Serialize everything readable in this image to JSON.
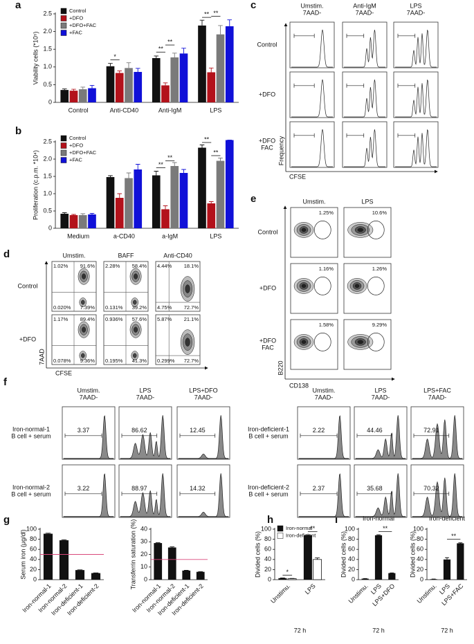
{
  "chart_data": [
    {
      "type": "bar",
      "panel": "a",
      "y_label": "Viability cells (*10⁵)",
      "categories": [
        "Control",
        "Anti-CD40",
        "Anti-IgM",
        "LPS"
      ],
      "series": [
        {
          "name": "Control",
          "color": "#111111",
          "values": [
            0.35,
            1.02,
            1.25,
            2.17
          ],
          "errors": [
            0.03,
            0.08,
            0.06,
            0.15
          ]
        },
        {
          "name": "+DFO",
          "color": "#b3121b",
          "values": [
            0.33,
            0.83,
            0.48,
            0.85
          ],
          "errors": [
            0.04,
            0.06,
            0.07,
            0.12
          ]
        },
        {
          "name": "+DFO+FAC",
          "color": "#7a7a7a",
          "values": [
            0.37,
            0.97,
            1.27,
            1.92
          ],
          "errors": [
            0.06,
            0.15,
            0.12,
            0.25
          ]
        },
        {
          "name": "+FAC",
          "color": "#1010d8",
          "values": [
            0.4,
            0.86,
            1.38,
            2.15
          ],
          "errors": [
            0.08,
            0.1,
            0.15,
            0.18
          ]
        }
      ],
      "ylim": [
        0,
        2.5
      ],
      "yticks": [
        0,
        0.5,
        {
          "value": 1,
          "label": "1.0"
        },
        1.5,
        {
          "value": 2,
          "label": "2.0"
        },
        2.5
      ],
      "annotations": [
        "*",
        "**",
        "**",
        "**",
        "**"
      ]
    },
    {
      "type": "bar",
      "panel": "b",
      "y_label": "Proliferation (c.p.m. *10⁴)",
      "categories": [
        "Medium",
        "a-CD40",
        "a-IgM",
        "LPS"
      ],
      "series": [
        {
          "name": "Control",
          "color": "#111111",
          "values": [
            0.42,
            1.48,
            1.53,
            2.33
          ],
          "errors": [
            0.03,
            0.04,
            0.12,
            0.08
          ]
        },
        {
          "name": "+DFO",
          "color": "#b3121b",
          "values": [
            0.38,
            0.88,
            0.55,
            0.72
          ],
          "errors": [
            0.02,
            0.12,
            0.1,
            0.05
          ]
        },
        {
          "name": "+DFO+FAC",
          "color": "#7a7a7a",
          "values": [
            0.38,
            1.45,
            1.8,
            1.95
          ],
          "errors": [
            0.04,
            0.15,
            0.1,
            0.08
          ]
        },
        {
          "name": "+FAC",
          "color": "#1010d8",
          "values": [
            0.4,
            1.7,
            1.6,
            2.55
          ],
          "errors": [
            0.03,
            0.15,
            0.1,
            0
          ]
        }
      ],
      "ylim": [
        0,
        2.5
      ],
      "yticks": [
        0,
        0.5,
        {
          "value": 1,
          "label": "1.0"
        },
        1.5,
        {
          "value": 2,
          "label": "2.0"
        },
        2.5
      ],
      "annotations": [
        "**",
        "**",
        "**",
        "**"
      ]
    },
    {
      "type": "bar",
      "panel": "g",
      "y_label": "Serum iron (μg/dl)",
      "categories": [
        "Iron-normal-1",
        "Iron-normal-2",
        "Iron-deficient-1",
        "Iron-deficient-2"
      ],
      "values": [
        91,
        78,
        19,
        13
      ],
      "errors": [
        1,
        1,
        0.5,
        0.5
      ],
      "color": "#111111",
      "reference_line": {
        "value": 50,
        "color": "#d9487a"
      },
      "ylim": [
        0,
        100
      ],
      "yticks": [
        0,
        20,
        40,
        60,
        80,
        100
      ]
    },
    {
      "type": "bar",
      "y_label": "Transferrin saturation (%)",
      "categories": [
        "Iron-normal-1",
        "Iron-normal-2",
        "Iron-deficient-1",
        "Iron-deficient-2"
      ],
      "values": [
        29,
        25.5,
        7.2,
        6.2
      ],
      "errors": [
        0.3,
        0.5,
        0.2,
        0.2
      ],
      "color": "#111111",
      "reference_line": {
        "value": 16,
        "color": "#d9487a"
      },
      "ylim": [
        0,
        40
      ],
      "yticks": [
        0,
        10,
        20,
        30,
        40
      ]
    },
    {
      "type": "bar",
      "panel": "h",
      "y_label": "Divided cells (%)",
      "x_label": "72 h",
      "categories": [
        "Unstimu.",
        "LPS"
      ],
      "series": [
        {
          "name": "Iron-normal",
          "color": "#111111",
          "values": [
            3,
            88
          ],
          "errors": [
            0.5,
            1
          ]
        },
        {
          "name": "Iron-deficient",
          "color": "#ffffff",
          "values": [
            2,
            40
          ],
          "errors": [
            0.5,
            3
          ]
        }
      ],
      "ylim": [
        0,
        100
      ],
      "yticks": [
        0,
        20,
        40,
        60,
        80,
        100
      ],
      "annotations": [
        "*",
        "**"
      ]
    },
    {
      "type": "bar",
      "panel": "i",
      "title": "Iron-normal",
      "y_label": "Divided cells (%)",
      "x_label": "72 h",
      "categories": [
        "Unstimu.",
        "LPS",
        "LPS+DFO"
      ],
      "values": [
        2,
        88,
        13
      ],
      "errors": [
        0.3,
        1,
        0.5
      ],
      "color": "#111111",
      "ylim": [
        0,
        100
      ],
      "yticks": [
        0,
        20,
        40,
        60,
        80,
        100
      ],
      "annotations": [
        "**"
      ]
    },
    {
      "type": "bar",
      "title": "Iron-deficient",
      "y_label": "Divided cells (%)",
      "x_label": "72 h",
      "categories": [
        "Unstimu.",
        "LPS",
        "LPS+FAC"
      ],
      "values": [
        1,
        40,
        72
      ],
      "errors": [
        0.2,
        3.5,
        1
      ],
      "color": "#111111",
      "ylim": [
        0,
        100
      ],
      "yticks": [
        0,
        20,
        40,
        60,
        80,
        100
      ],
      "annotations": [
        "**"
      ]
    }
  ],
  "flow_c": {
    "panel": "c",
    "columns": [
      [
        "Umstim.",
        "7AAD-"
      ],
      [
        "Anti-IgM",
        "7AAD-"
      ],
      [
        "LPS",
        "7AAD-"
      ]
    ],
    "rows": [
      [
        "Control"
      ],
      [
        "+DFO"
      ],
      [
        "+DFO",
        "FAC"
      ]
    ],
    "y_label": "Frequency",
    "x_label": "CFSE"
  },
  "flow_d": {
    "panel": "d",
    "columns": [
      "Umstim.",
      "BAFF",
      "Anti-CD40"
    ],
    "rows": [
      "Control",
      "+DFO"
    ],
    "quadrants": [
      [
        [
          "1.02%",
          "91.6%",
          "0.020%",
          "7.39%"
        ],
        [
          "2.28%",
          "58.4%",
          "0.131%",
          "39.2%"
        ],
        [
          "4.44%",
          "18.1%",
          "4.75%",
          "72.7%"
        ]
      ],
      [
        [
          "1.17%",
          "89.4%",
          "0.078%",
          "9.36%"
        ],
        [
          "0.936%",
          "57.6%",
          "0.195%",
          "41.3%"
        ],
        [
          "5.87%",
          "21.1%",
          "0.299%",
          "72.7%"
        ]
      ]
    ],
    "y_label": "7AAD",
    "x_label": "CFSE"
  },
  "flow_e": {
    "panel": "e",
    "columns": [
      "Umstim.",
      "LPS"
    ],
    "rows": [
      [
        "Control"
      ],
      [
        "+DFO"
      ],
      [
        "+DFO",
        "FAC"
      ]
    ],
    "gates": [
      [
        "1.25%",
        "10.6%"
      ],
      [
        "1.16%",
        "1.26%"
      ],
      [
        "1.58%",
        "9.29%"
      ]
    ],
    "y_label": "B220",
    "x_label": "CD138"
  },
  "flow_f": {
    "panel": "f",
    "groups": [
      {
        "columns": [
          [
            "Umstim.",
            "7AAD-"
          ],
          [
            "LPS",
            "7AAD-"
          ],
          [
            "LPS+DFO",
            "7AAD-"
          ]
        ],
        "rows": [
          [
            "Iron-normal-1",
            "B cell + serum"
          ],
          [
            "Iron-normal-2",
            "B cell + serum"
          ]
        ],
        "gates": [
          [
            "3.37",
            "86.62",
            "12.45"
          ],
          [
            "3.22",
            "88.97",
            "14.32"
          ]
        ]
      },
      {
        "columns": [
          [
            "Umstim.",
            "7AAD-"
          ],
          [
            "LPS",
            "7AAD-"
          ],
          [
            "LPS+FAC",
            "7AAD-"
          ]
        ],
        "rows": [
          [
            "Iron-deficient-1",
            "B cell + serum"
          ],
          [
            "Iron-deficient-2",
            "B cell + serum"
          ]
        ],
        "gates": [
          [
            "2.22",
            "44.46",
            "72.91"
          ],
          [
            "2.37",
            "35.68",
            "70.32"
          ]
        ]
      }
    ]
  }
}
